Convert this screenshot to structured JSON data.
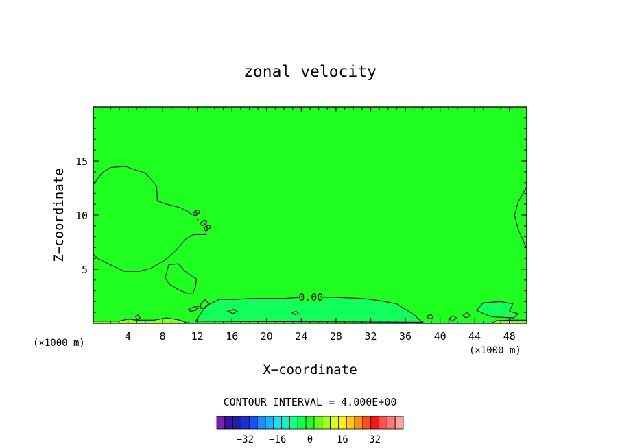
{
  "chart_data": {
    "type": "heatmap",
    "title": "zonal velocity",
    "xlabel": "X−coordinate",
    "ylabel": "Z−coordinate",
    "x_units_left": "(×1000 m)",
    "x_units_right": "(×1000 m)",
    "xlim": [
      0,
      50
    ],
    "ylim": [
      0,
      20
    ],
    "x_ticks": [
      4,
      8,
      12,
      16,
      20,
      24,
      28,
      32,
      36,
      40,
      44,
      48
    ],
    "x_tick_labels": [
      "4",
      "8",
      "12",
      "16",
      "20",
      "24",
      "28",
      "32",
      "36",
      "40",
      "44",
      "48"
    ],
    "y_ticks": [
      5,
      10,
      15
    ],
    "y_tick_labels": [
      "5",
      "10",
      "15"
    ],
    "contour_labels": [
      {
        "text": "0.00",
        "x": 12.5,
        "z": 9.5,
        "rotate": 55
      },
      {
        "text": "0.00",
        "x": 25.1,
        "z": 2.4,
        "rotate": 0
      }
    ],
    "regions": [
      {
        "name": "left upper positive lobe",
        "color": "#1fff1f",
        "points": [
          [
            0,
            12.8
          ],
          [
            1,
            13.9
          ],
          [
            2,
            14.4
          ],
          [
            3.7,
            14.5
          ],
          [
            4.8,
            14.2
          ],
          [
            6,
            13.9
          ],
          [
            7.3,
            12.7
          ],
          [
            7.4,
            11.3
          ],
          [
            8.5,
            11.0
          ],
          [
            10,
            10.7
          ],
          [
            11,
            10.3
          ],
          [
            12,
            9.6
          ],
          [
            12.8,
            8.8
          ],
          [
            13,
            8.2
          ],
          [
            11.5,
            8.2
          ],
          [
            10.7,
            7.8
          ],
          [
            9.5,
            6.7
          ],
          [
            8.2,
            5.8
          ],
          [
            6.7,
            5.1
          ],
          [
            5.3,
            4.8
          ],
          [
            3.6,
            4.8
          ],
          [
            2,
            5.4
          ],
          [
            0.5,
            6.0
          ],
          [
            0,
            6.4
          ]
        ]
      },
      {
        "name": "left middle positive lobe",
        "color": "#1fff1f",
        "points": [
          [
            8.7,
            5.4
          ],
          [
            9.8,
            5.5
          ],
          [
            10.6,
            4.8
          ],
          [
            11.5,
            4.3
          ],
          [
            11.9,
            4.1
          ],
          [
            11.8,
            3.4
          ],
          [
            11.5,
            2.8
          ],
          [
            10.8,
            2.8
          ],
          [
            9.8,
            3.1
          ],
          [
            8.8,
            3.6
          ],
          [
            8.3,
            4.2
          ]
        ]
      },
      {
        "name": "right edge positive lobe",
        "color": "#1fff1f",
        "points": [
          [
            50,
            12.6
          ],
          [
            49,
            11.2
          ],
          [
            48.6,
            10.0
          ],
          [
            49.0,
            8.7
          ],
          [
            50,
            6.9
          ]
        ]
      },
      {
        "name": "bottom negative band",
        "color": "#10ff5a",
        "points": [
          [
            11.8,
            0.2
          ],
          [
            13,
            1.6
          ],
          [
            14.5,
            2.2
          ],
          [
            16.5,
            2.2
          ],
          [
            18,
            2.3
          ],
          [
            20,
            2.3
          ],
          [
            22,
            2.3
          ],
          [
            24,
            2.4
          ],
          [
            28,
            2.4
          ],
          [
            31,
            2.3
          ],
          [
            33,
            2.1
          ],
          [
            35,
            1.8
          ],
          [
            36,
            1.3
          ],
          [
            37,
            0.8
          ],
          [
            37.5,
            0.4
          ],
          [
            38,
            0.1
          ]
        ]
      },
      {
        "name": "bottom right negative patch",
        "color": "#10ff5a",
        "points": [
          [
            44.2,
            1.2
          ],
          [
            45,
            1.9
          ],
          [
            47,
            2.0
          ],
          [
            48.4,
            1.8
          ],
          [
            48.0,
            1.1
          ],
          [
            49.0,
            0.9
          ],
          [
            48.5,
            0.5
          ],
          [
            46.0,
            0.6
          ],
          [
            45.0,
            0.9
          ]
        ]
      },
      {
        "name": "bottom boundary positive strip",
        "color": "#8cff14",
        "points": [
          [
            0,
            0
          ],
          [
            0,
            0.2
          ],
          [
            3,
            0.2
          ],
          [
            4,
            0.4
          ],
          [
            5,
            0.3
          ],
          [
            7,
            0.3
          ],
          [
            8.5,
            0.5
          ],
          [
            10,
            0.3
          ],
          [
            11,
            0
          ],
          [
            46,
            0
          ],
          [
            46.5,
            0.25
          ],
          [
            48,
            0.3
          ],
          [
            50,
            0.3
          ],
          [
            50,
            0
          ]
        ]
      }
    ],
    "small_contours": [
      [
        [
          11,
          1.3
        ],
        [
          11.6,
          1.5
        ],
        [
          12.2,
          1.6
        ],
        [
          11.8,
          1.2
        ],
        [
          11.2,
          1.1
        ]
      ],
      [
        [
          12.4,
          1.8
        ],
        [
          12.9,
          2.2
        ],
        [
          13.3,
          1.8
        ],
        [
          12.9,
          1.4
        ],
        [
          12.4,
          1.4
        ]
      ],
      [
        [
          15.5,
          1.1
        ],
        [
          16.2,
          1.3
        ],
        [
          16.6,
          1.1
        ],
        [
          16.1,
          0.9
        ]
      ],
      [
        [
          22.9,
          1.0
        ],
        [
          23.4,
          1.1
        ],
        [
          23.7,
          0.9
        ],
        [
          23.2,
          0.8
        ]
      ],
      [
        [
          38.5,
          0.7
        ],
        [
          39.0,
          0.8
        ],
        [
          39.2,
          0.5
        ],
        [
          38.7,
          0.4
        ]
      ],
      [
        [
          41.0,
          0.4
        ],
        [
          41.5,
          0.7
        ],
        [
          41.9,
          0.5
        ],
        [
          41.4,
          0.2
        ]
      ],
      [
        [
          42.6,
          0.7
        ],
        [
          43.1,
          1.0
        ],
        [
          43.5,
          0.7
        ],
        [
          43.0,
          0.5
        ]
      ],
      [
        [
          4.9,
          0.6
        ],
        [
          5.2,
          0.8
        ],
        [
          5.4,
          0.5
        ],
        [
          5.1,
          0.3
        ]
      ]
    ],
    "background_color": "#1fff1f",
    "colorbar": {
      "title": "CONTOUR INTERVAL = 4.000E+00",
      "colors": [
        "#7a1fb0",
        "#3214a8",
        "#1e1eaa",
        "#1432d2",
        "#1450ff",
        "#1e8cff",
        "#14b4ff",
        "#14e6f0",
        "#14f0c8",
        "#14ff8c",
        "#14ff46",
        "#1fff1f",
        "#64ff14",
        "#a0ff1e",
        "#dcff14",
        "#fff014",
        "#ffc814",
        "#ff8c14",
        "#ff5014",
        "#ff1414",
        "#ff5050",
        "#ff7878",
        "#ffa0a0"
      ],
      "tick_labels": [
        "−32",
        "−16",
        "0",
        "16",
        "32"
      ],
      "tick_values": [
        -32,
        -16,
        0,
        16,
        32
      ]
    }
  }
}
